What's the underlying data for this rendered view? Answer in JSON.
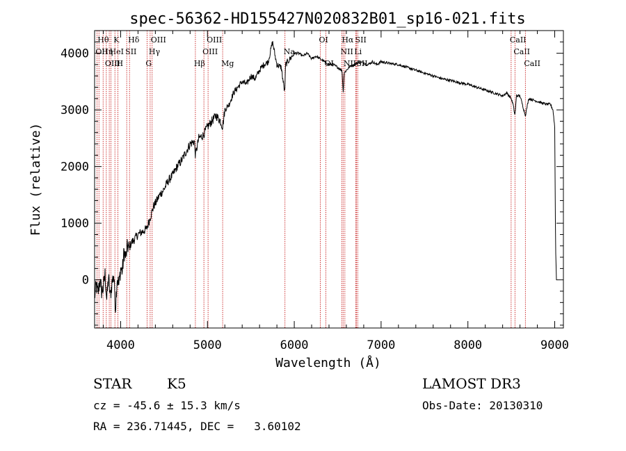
{
  "chart_data": {
    "type": "line",
    "title": "spec-56362-HD155427N020832B01_sp16-021.fits",
    "xlabel": "Wavelength (Å)",
    "ylabel": "Flux (relative)",
    "xlim": [
      3700,
      9100
    ],
    "ylim": [
      -850,
      4400
    ],
    "xticks": [
      4000,
      5000,
      6000,
      7000,
      8000,
      9000
    ],
    "yticks": [
      0,
      1000,
      2000,
      3000,
      4000
    ],
    "grid": false,
    "series": [
      {
        "name": "flux",
        "x": [
          3700,
          3720,
          3740,
          3760,
          3780,
          3800,
          3820,
          3840,
          3860,
          3880,
          3900,
          3920,
          3940,
          3950,
          3960,
          3980,
          4000,
          4020,
          4040,
          4060,
          4080,
          4100,
          4120,
          4150,
          4200,
          4250,
          4300,
          4320,
          4340,
          4360,
          4380,
          4400,
          4450,
          4500,
          4550,
          4600,
          4650,
          4700,
          4750,
          4800,
          4850,
          4861,
          4900,
          4950,
          5000,
          5050,
          5100,
          5150,
          5175,
          5200,
          5250,
          5300,
          5350,
          5400,
          5450,
          5500,
          5550,
          5600,
          5650,
          5700,
          5750,
          5780,
          5800,
          5850,
          5890,
          5900,
          5950,
          6000,
          6050,
          6100,
          6150,
          6200,
          6250,
          6300,
          6350,
          6400,
          6450,
          6500,
          6550,
          6563,
          6575,
          6600,
          6650,
          6700,
          6750,
          6800,
          6850,
          6900,
          6950,
          7000,
          7100,
          7200,
          7300,
          7400,
          7500,
          7600,
          7700,
          7800,
          7900,
          8000,
          8100,
          8200,
          8300,
          8400,
          8450,
          8498,
          8520,
          8542,
          8560,
          8600,
          8662,
          8700,
          8800,
          8900,
          8950,
          8980,
          9000,
          9010,
          9020
        ],
        "values": [
          -300,
          -100,
          -250,
          0,
          -200,
          -150,
          100,
          -350,
          50,
          -300,
          -50,
          100,
          -500,
          -200,
          50,
          -100,
          200,
          150,
          500,
          400,
          600,
          550,
          650,
          700,
          800,
          850,
          900,
          1000,
          1100,
          1200,
          1300,
          1350,
          1500,
          1600,
          1750,
          1850,
          2000,
          2100,
          2250,
          2400,
          2450,
          2200,
          2500,
          2550,
          2700,
          2800,
          2900,
          2800,
          2700,
          3000,
          3100,
          3300,
          3400,
          3500,
          3450,
          3600,
          3550,
          3700,
          3800,
          3850,
          4200,
          3950,
          3800,
          3750,
          3300,
          3800,
          3900,
          4000,
          4000,
          3950,
          4000,
          3900,
          3950,
          3900,
          3850,
          3800,
          3800,
          3750,
          3700,
          3300,
          3650,
          3700,
          3780,
          3800,
          3850,
          3830,
          3800,
          3850,
          3800,
          3850,
          3820,
          3800,
          3750,
          3700,
          3650,
          3600,
          3550,
          3520,
          3480,
          3450,
          3400,
          3350,
          3300,
          3250,
          3300,
          3200,
          3100,
          2900,
          3250,
          3250,
          2900,
          3200,
          3150,
          3100,
          3100,
          3000,
          2700,
          600,
          0
        ]
      }
    ],
    "spectral_lines": [
      {
        "wavelength": 3727,
        "label": "OII",
        "row": 1
      },
      {
        "wavelength": 3750,
        "label": "Hθ",
        "row": 0
      },
      {
        "wavelength": 3798,
        "label": "Hη",
        "row": 1
      },
      {
        "wavelength": 3835,
        "label": "OIII",
        "row": 2
      },
      {
        "wavelength": 3869,
        "label": "",
        "row": 2
      },
      {
        "wavelength": 3889,
        "label": "HeI",
        "row": 1
      },
      {
        "wavelength": 3934,
        "label": "K",
        "row": 0
      },
      {
        "wavelength": 3968,
        "label": "H",
        "row": 2
      },
      {
        "wavelength": 4070,
        "label": "SII",
        "row": 1
      },
      {
        "wavelength": 4102,
        "label": "Hδ",
        "row": 0
      },
      {
        "wavelength": 4304,
        "label": "G",
        "row": 2
      },
      {
        "wavelength": 4340,
        "label": "Hγ",
        "row": 1
      },
      {
        "wavelength": 4363,
        "label": "OIII",
        "row": 0
      },
      {
        "wavelength": 4861,
        "label": "Hβ",
        "row": 2
      },
      {
        "wavelength": 4959,
        "label": "OIII",
        "row": 1
      },
      {
        "wavelength": 5007,
        "label": "OIII",
        "row": 0
      },
      {
        "wavelength": 5175,
        "label": "Mg",
        "row": 2
      },
      {
        "wavelength": 5893,
        "label": "Na",
        "row": 1
      },
      {
        "wavelength": 6300,
        "label": "OI",
        "row": 0
      },
      {
        "wavelength": 6364,
        "label": "OI",
        "row": 2
      },
      {
        "wavelength": 6548,
        "label": "NII",
        "row": 1
      },
      {
        "wavelength": 6563,
        "label": "Hα",
        "row": 0
      },
      {
        "wavelength": 6583,
        "label": "NII",
        "row": 2
      },
      {
        "wavelength": 6707,
        "label": "Li",
        "row": 1
      },
      {
        "wavelength": 6717,
        "label": "SII",
        "row": 0
      },
      {
        "wavelength": 6731,
        "label": "SII",
        "row": 2
      },
      {
        "wavelength": 8498,
        "label": "CaII",
        "row": 0
      },
      {
        "wavelength": 8542,
        "label": "CaII",
        "row": 1
      },
      {
        "wavelength": 8662,
        "label": "CaII",
        "row": 2
      }
    ]
  },
  "info": {
    "class": "STAR",
    "subclass": "K5",
    "survey": "LAMOST DR3",
    "cz": "cz = -45.6 ± 15.3 km/s",
    "obs_date": "Obs-Date: 20130310",
    "radec": "RA = 236.71445, DEC =   3.60102"
  }
}
